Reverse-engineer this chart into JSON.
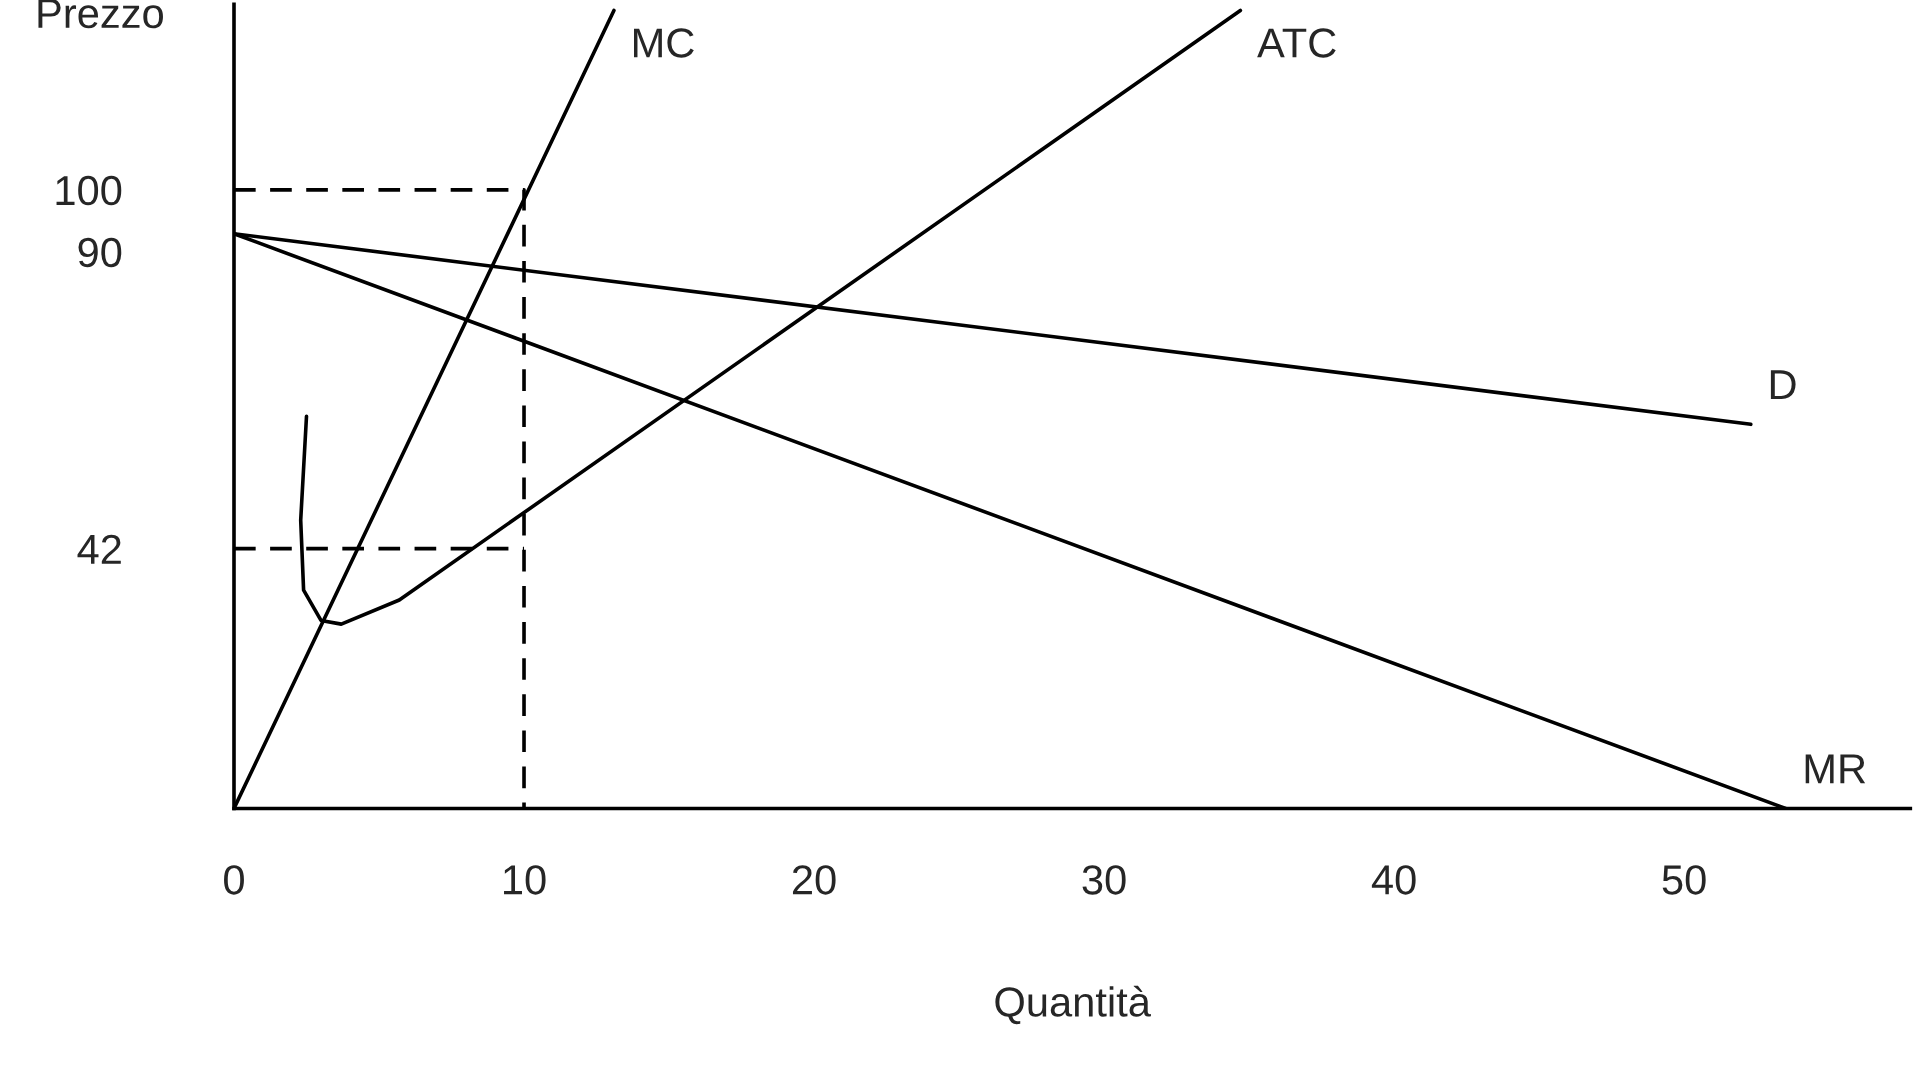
{
  "chart_data": {
    "type": "line",
    "xlabel": "Quantità",
    "ylabel": "Prezzo",
    "xlim": [
      0,
      57.8
    ],
    "ylim": [
      0,
      130
    ],
    "xticks": [
      0,
      10,
      20,
      30,
      40,
      50
    ],
    "yticks": [
      42,
      90,
      100
    ],
    "grid": false,
    "legend": false,
    "series": [
      {
        "name": "D",
        "color": "#000000",
        "x": [
          0,
          52.3
        ],
        "values": [
          92.9,
          62.1
        ]
      },
      {
        "name": "MR",
        "color": "#000000",
        "x": [
          0,
          53.5
        ],
        "values": [
          92.9,
          0
        ]
      },
      {
        "name": "MC",
        "color": "#000000",
        "x": [
          0,
          13.1
        ],
        "values": [
          0,
          129
        ]
      },
      {
        "name": "ATC",
        "color": "#000000",
        "x": [
          2.5,
          2.3,
          2.4,
          3.0,
          3.7,
          5.7,
          34.7
        ],
        "values": [
          63.4,
          46.6,
          35.3,
          30.4,
          29.8,
          33.7,
          129
        ]
      },
      {
        "color": "#000000",
        "line_style": "dashed",
        "x": [
          0,
          10,
          10
        ],
        "values": [
          100,
          100,
          0
        ]
      },
      {
        "color": "#000000",
        "line_style": "dashed",
        "x": [
          0,
          10
        ],
        "values": [
          42,
          42
        ]
      }
    ]
  }
}
